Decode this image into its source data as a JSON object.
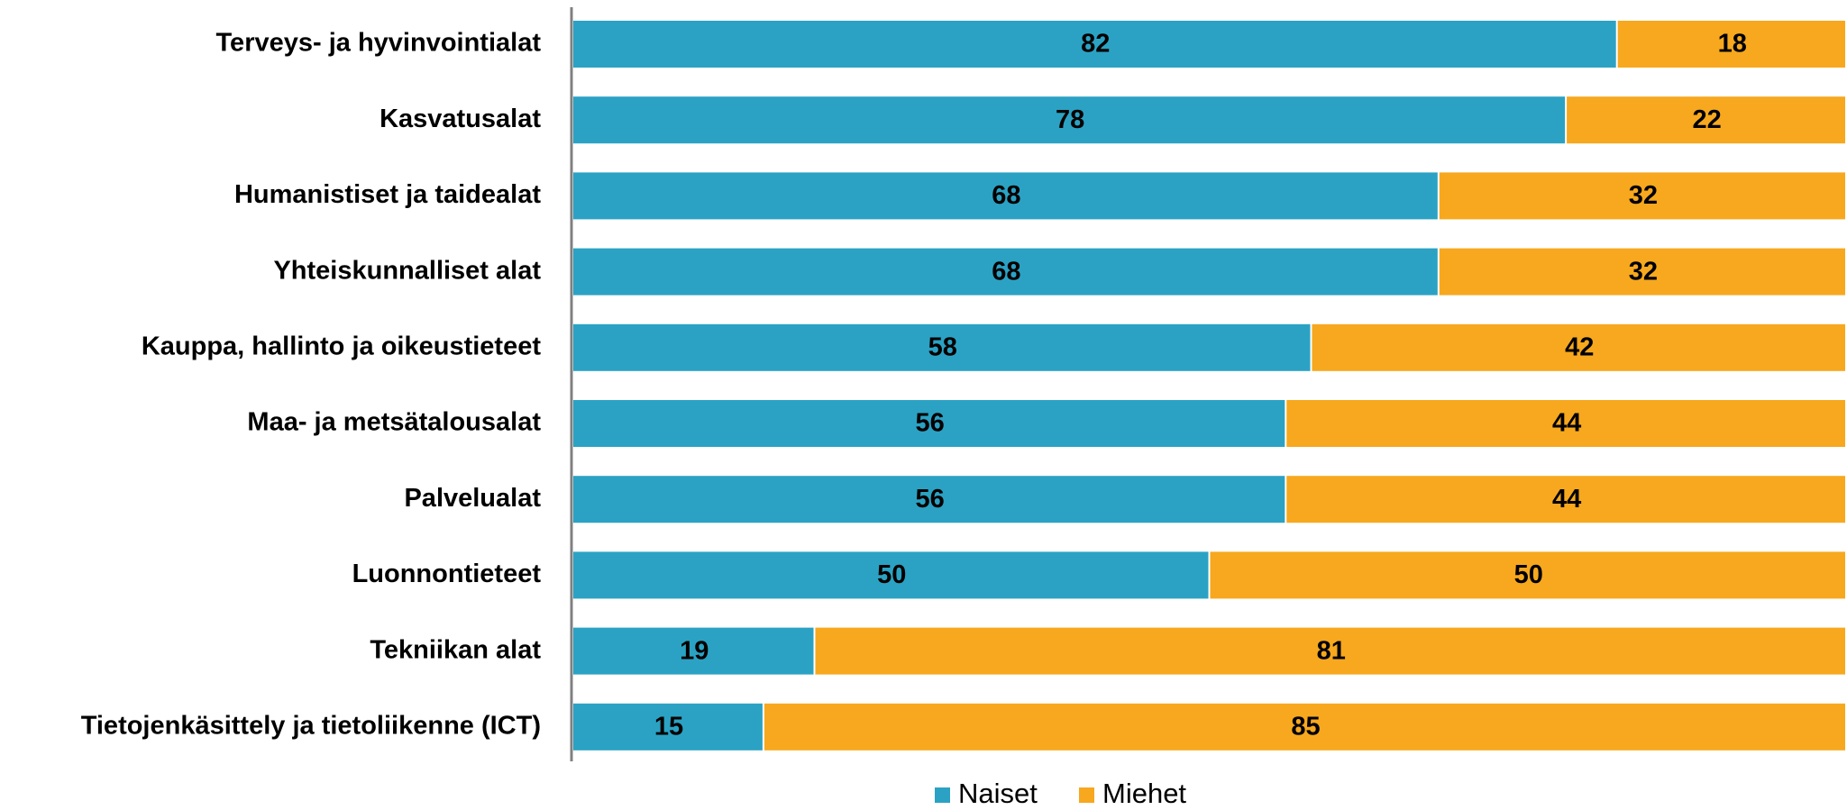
{
  "chart_data": {
    "type": "bar",
    "orientation": "horizontal",
    "stacked": true,
    "categories": [
      "Terveys- ja hyvinvointialat",
      "Kasvatusalat",
      "Humanistiset ja taidealat",
      "Yhteiskunnalliset alat",
      "Kauppa, hallinto ja oikeustieteet",
      "Maa- ja metsätalousalat",
      "Palvelualat",
      "Luonnontieteet",
      "Tekniikan alat",
      "Tietojenkäsittely ja tietoliikenne (ICT)"
    ],
    "series": [
      {
        "name": "Naiset",
        "color": "#2ba2c4",
        "values": [
          82,
          78,
          68,
          68,
          58,
          56,
          56,
          50,
          19,
          15
        ]
      },
      {
        "name": "Miehet",
        "color": "#f7a81e",
        "values": [
          18,
          22,
          32,
          32,
          42,
          44,
          44,
          50,
          81,
          85
        ]
      }
    ],
    "xlim": [
      0,
      100
    ],
    "grid": false,
    "legend_position": "bottom-center",
    "title": "",
    "xlabel": "",
    "ylabel": ""
  }
}
